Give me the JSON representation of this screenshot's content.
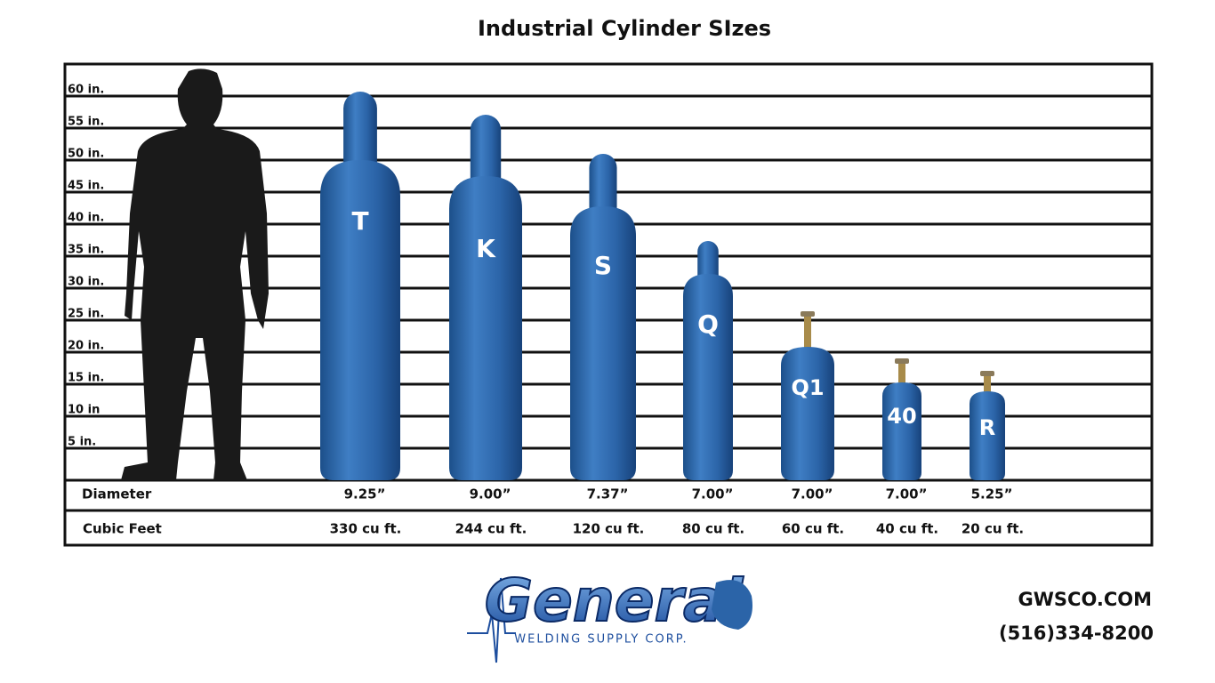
{
  "title": "Industrial Cylinder SIzes",
  "scale_labels": [
    "60 in.",
    "55 in.",
    "50 in.",
    "45 in.",
    "40 in.",
    "35 in.",
    "30 in.",
    "25 in.",
    "20 in.",
    "15 in.",
    "10 in",
    "5 in."
  ],
  "row_headers": {
    "diameter": "Diameter",
    "cubic_feet": "Cubic Feet"
  },
  "cylinders": [
    {
      "label": "T",
      "diameter": "9.25”",
      "cubic_feet": "330 cu ft."
    },
    {
      "label": "K",
      "diameter": "9.00”",
      "cubic_feet": "244 cu ft."
    },
    {
      "label": "S",
      "diameter": "7.37”",
      "cubic_feet": "120 cu ft."
    },
    {
      "label": "Q",
      "diameter": "7.00”",
      "cubic_feet": "80 cu ft."
    },
    {
      "label": "Q1",
      "diameter": "7.00”",
      "cubic_feet": "60 cu ft."
    },
    {
      "label": "40",
      "diameter": "7.00”",
      "cubic_feet": "40 cu ft."
    },
    {
      "label": "R",
      "diameter": "5.25”",
      "cubic_feet": "20 cu ft."
    }
  ],
  "logo": {
    "name": "General",
    "subtitle": "WELDING SUPPLY CORP."
  },
  "contact": {
    "website": "GWSCO.COM",
    "phone": "(516)334-8200"
  }
}
